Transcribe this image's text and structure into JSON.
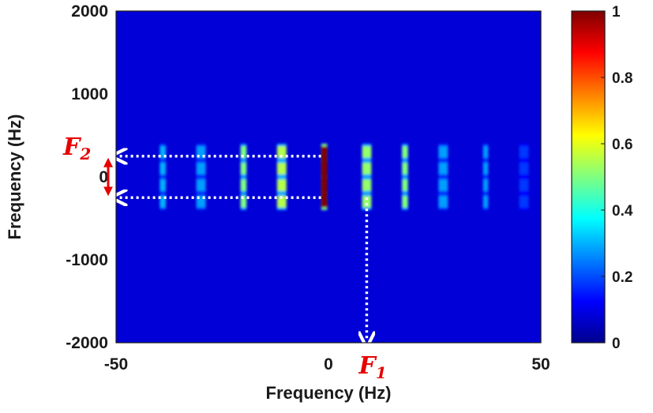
{
  "chart_data": {
    "type": "heatmap",
    "xlabel": "Frequency (Hz)",
    "ylabel": "Frequency (Hz)",
    "xlim": [
      -50,
      50
    ],
    "ylim": [
      -2000,
      2000
    ],
    "xticks": [
      "-50",
      "0",
      "50"
    ],
    "yticks": [
      "2000",
      "1000",
      "0",
      "-1000",
      "-2000"
    ],
    "colorbar": {
      "range": [
        0,
        1
      ],
      "ticks": [
        "1",
        "0.8",
        "0.6",
        "0.4",
        "0.2",
        "0"
      ],
      "colormap": "jet"
    },
    "background_value": 0.08,
    "spectral_lines": [
      {
        "x": -39,
        "width": 1.4,
        "value": 0.3
      },
      {
        "x": -30,
        "width": 2.2,
        "value": 0.28
      },
      {
        "x": -20,
        "width": 1.4,
        "value": 0.5
      },
      {
        "x": -11,
        "width": 2.2,
        "value": 0.55
      },
      {
        "x": -1,
        "width": 1.4,
        "value": 1.0
      },
      {
        "x": 9,
        "width": 2.2,
        "value": 0.52
      },
      {
        "x": 18,
        "width": 1.4,
        "value": 0.5
      },
      {
        "x": 27,
        "width": 2.2,
        "value": 0.28
      },
      {
        "x": 37,
        "width": 1.2,
        "value": 0.28
      },
      {
        "x": 46,
        "width": 2.2,
        "value": 0.18
      }
    ],
    "line_y_extent": [
      -400,
      400
    ],
    "peak_y": [
      -300,
      -100,
      100,
      300
    ],
    "annotations": {
      "F1": {
        "main": "F",
        "sub": "1",
        "x": 9
      },
      "F2": {
        "main": "F",
        "sub": "2",
        "y_top": 250,
        "y_bottom": -250
      }
    }
  }
}
